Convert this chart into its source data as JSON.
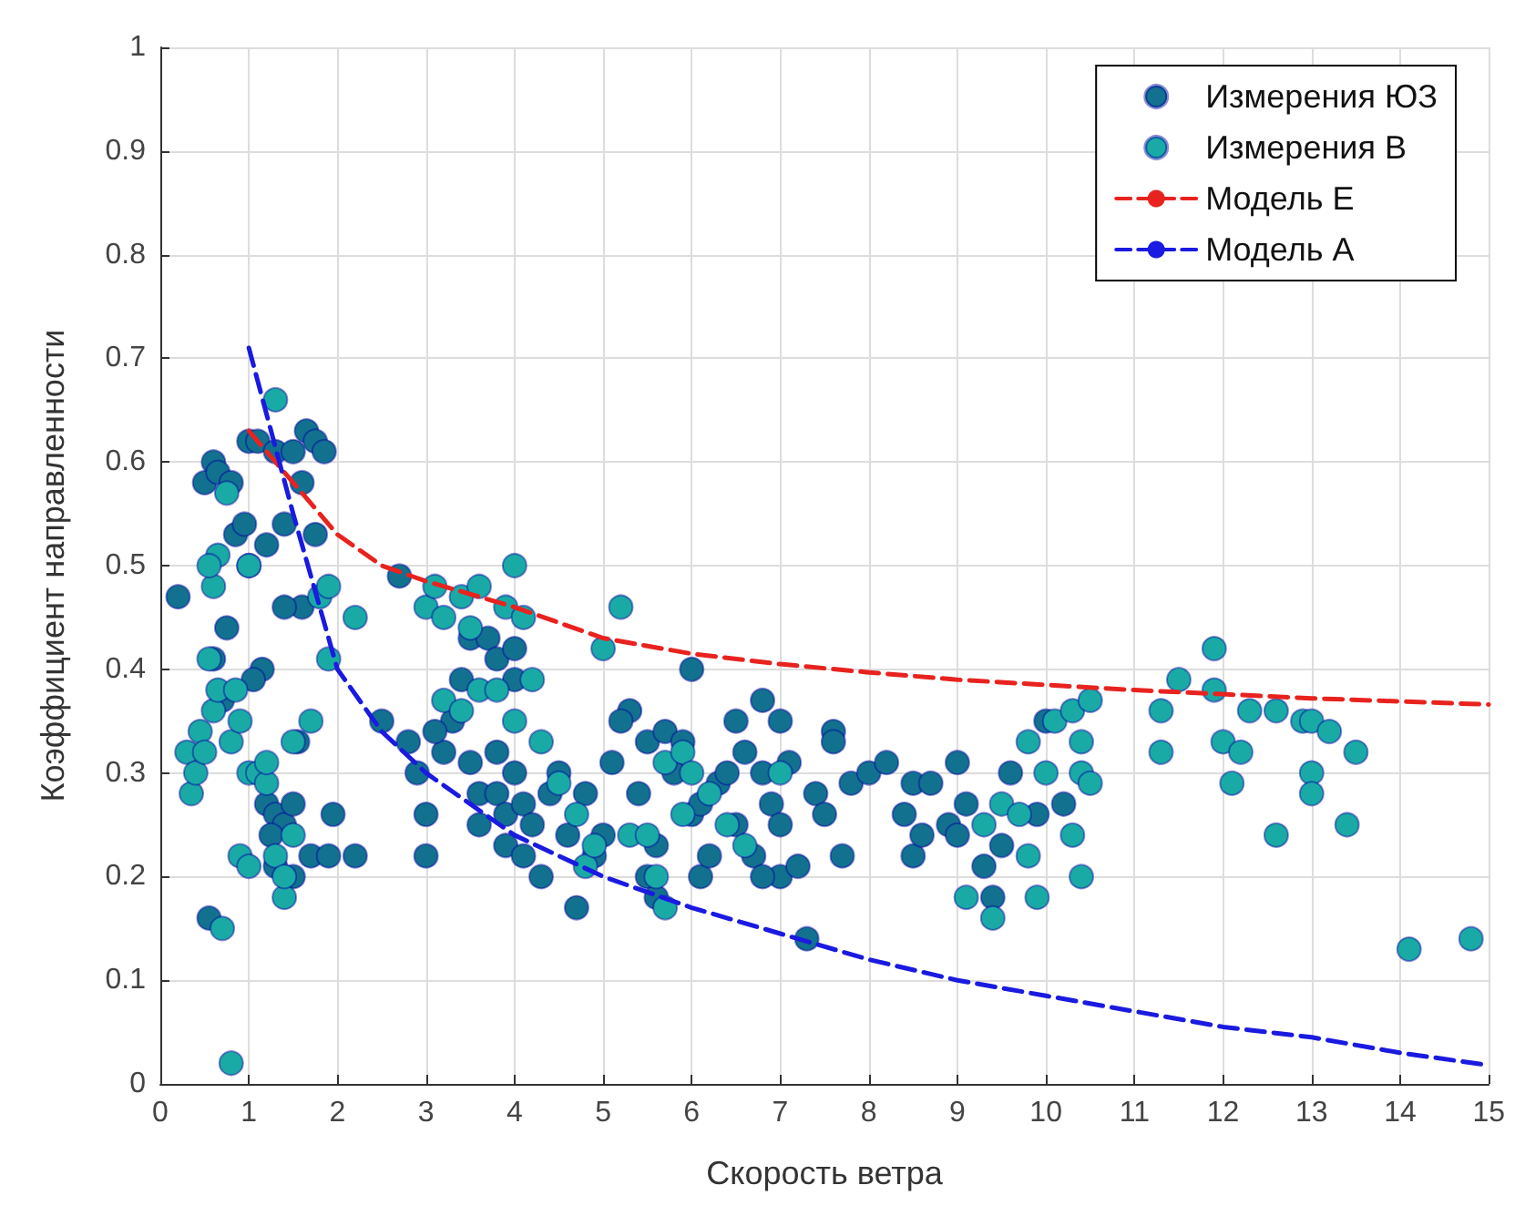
{
  "chart_data": {
    "type": "scatter",
    "xlabel": "Скорость ветра",
    "ylabel": "Коэффициент направленности",
    "xlim": [
      0,
      15
    ],
    "xticks": [
      0,
      1,
      2,
      3,
      4,
      5,
      6,
      7,
      8,
      9,
      10,
      11,
      12,
      13,
      14,
      15
    ],
    "ylim": [
      0,
      1
    ],
    "yticks": [
      0,
      0.1,
      0.2,
      0.3,
      0.4,
      0.5,
      0.6,
      0.7,
      0.8,
      0.9,
      1
    ],
    "grid": true,
    "legend": "top right",
    "series": [
      {
        "name": "Измерения ЮЗ",
        "marker": "circle",
        "color": "#12718f",
        "x": [
          0.2,
          0.55,
          0.5,
          0.6,
          0.65,
          0.8,
          0.85,
          0.75,
          0.6,
          0.7,
          0.95,
          1.0,
          1.1,
          1.3,
          1.5,
          1.65,
          1.75,
          1.85,
          1.6,
          1.4,
          1.2,
          1.15,
          1.05,
          1.6,
          1.4,
          1.75,
          1.0,
          1.2,
          1.3,
          1.4,
          1.5,
          1.25,
          1.7,
          1.3,
          1.5,
          1.9,
          1.95,
          2.2,
          1.55,
          2.5,
          2.8,
          2.9,
          3.0,
          3.0,
          3.2,
          3.3,
          3.5,
          3.6,
          3.6,
          3.8,
          3.8,
          3.9,
          3.9,
          4.0,
          4.1,
          4.1,
          4.2,
          4.3,
          4.4,
          4.5,
          4.6,
          4.7,
          4.8,
          4.9,
          3.5,
          3.7,
          3.8,
          4.0,
          4.0,
          3.4,
          3.1,
          2.7,
          5.1,
          5.3,
          5.2,
          5.4,
          5.5,
          5.5,
          5.6,
          5.6,
          5.7,
          5.8,
          5.9,
          6.0,
          6.0,
          6.1,
          6.1,
          6.2,
          6.3,
          6.4,
          6.5,
          6.5,
          6.6,
          6.7,
          6.8,
          6.8,
          6.9,
          7.0,
          7.0,
          7.0,
          7.1,
          7.2,
          7.3,
          7.4,
          7.5,
          7.6,
          7.6,
          7.7,
          7.8,
          8.0,
          8.2,
          8.4,
          8.5,
          8.5,
          8.6,
          8.7,
          8.9,
          9.0,
          9.0,
          9.1,
          9.3,
          9.4,
          9.5,
          9.6,
          10.0,
          9.9,
          10.2,
          6.8,
          5.0
        ],
        "values": [
          0.47,
          0.16,
          0.58,
          0.6,
          0.59,
          0.58,
          0.53,
          0.44,
          0.41,
          0.37,
          0.54,
          0.62,
          0.62,
          0.61,
          0.61,
          0.63,
          0.62,
          0.61,
          0.58,
          0.54,
          0.52,
          0.4,
          0.39,
          0.46,
          0.46,
          0.53,
          0.5,
          0.27,
          0.26,
          0.25,
          0.27,
          0.24,
          0.22,
          0.21,
          0.2,
          0.22,
          0.26,
          0.22,
          0.33,
          0.35,
          0.33,
          0.3,
          0.26,
          0.22,
          0.32,
          0.35,
          0.31,
          0.28,
          0.25,
          0.32,
          0.28,
          0.26,
          0.23,
          0.3,
          0.27,
          0.22,
          0.25,
          0.2,
          0.28,
          0.3,
          0.24,
          0.17,
          0.28,
          0.22,
          0.43,
          0.43,
          0.41,
          0.42,
          0.39,
          0.39,
          0.34,
          0.49,
          0.31,
          0.36,
          0.35,
          0.28,
          0.33,
          0.2,
          0.23,
          0.18,
          0.34,
          0.3,
          0.33,
          0.26,
          0.4,
          0.27,
          0.2,
          0.22,
          0.29,
          0.3,
          0.35,
          0.25,
          0.32,
          0.22,
          0.37,
          0.3,
          0.27,
          0.35,
          0.25,
          0.2,
          0.31,
          0.21,
          0.14,
          0.28,
          0.26,
          0.34,
          0.33,
          0.22,
          0.29,
          0.3,
          0.31,
          0.26,
          0.29,
          0.22,
          0.24,
          0.29,
          0.25,
          0.31,
          0.24,
          0.27,
          0.21,
          0.18,
          0.23,
          0.3,
          0.35,
          0.26,
          0.27,
          0.2,
          0.24
        ]
      },
      {
        "name": "Измерения В",
        "marker": "circle",
        "color": "#1aaaa6",
        "x": [
          0.3,
          0.35,
          0.4,
          0.45,
          0.5,
          0.55,
          0.6,
          0.65,
          0.6,
          0.7,
          0.75,
          0.65,
          0.8,
          0.85,
          0.9,
          0.9,
          1.0,
          1.0,
          1.0,
          1.1,
          1.2,
          1.2,
          1.3,
          1.4,
          1.4,
          1.3,
          1.5,
          1.7,
          1.8,
          1.9,
          1.9,
          0.8,
          2.2,
          0.55,
          1.5,
          3.0,
          3.1,
          3.2,
          3.4,
          3.5,
          3.6,
          3.9,
          4.0,
          4.1,
          3.2,
          3.4,
          3.6,
          3.8,
          4.2,
          4.3,
          4.0,
          4.5,
          4.7,
          4.8,
          4.9,
          5.0,
          5.2,
          5.3,
          5.5,
          5.6,
          5.7,
          5.7,
          5.9,
          6.0,
          5.9,
          6.2,
          6.4,
          6.6,
          7.0,
          9.1,
          9.4,
          9.3,
          9.5,
          9.7,
          9.8,
          9.8,
          9.9,
          10.0,
          10.1,
          10.3,
          10.4,
          10.5,
          10.4,
          10.3,
          10.4,
          10.5,
          11.3,
          11.3,
          11.5,
          11.9,
          11.9,
          12.0,
          12.1,
          12.2,
          12.3,
          12.6,
          12.6,
          12.9,
          13.0,
          13.0,
          13.0,
          13.2,
          13.4,
          13.5,
          14.1,
          14.8
        ],
        "values": [
          0.32,
          0.28,
          0.3,
          0.34,
          0.32,
          0.41,
          0.36,
          0.51,
          0.48,
          0.15,
          0.57,
          0.38,
          0.33,
          0.38,
          0.35,
          0.22,
          0.3,
          0.5,
          0.21,
          0.3,
          0.29,
          0.31,
          0.22,
          0.18,
          0.2,
          0.66,
          0.33,
          0.35,
          0.47,
          0.48,
          0.41,
          0.02,
          0.45,
          0.5,
          0.24,
          0.46,
          0.48,
          0.45,
          0.47,
          0.44,
          0.48,
          0.46,
          0.5,
          0.45,
          0.37,
          0.36,
          0.38,
          0.38,
          0.39,
          0.33,
          0.35,
          0.29,
          0.26,
          0.21,
          0.23,
          0.42,
          0.46,
          0.24,
          0.24,
          0.2,
          0.17,
          0.31,
          0.32,
          0.3,
          0.26,
          0.28,
          0.25,
          0.23,
          0.3,
          0.18,
          0.16,
          0.25,
          0.27,
          0.26,
          0.22,
          0.33,
          0.18,
          0.3,
          0.35,
          0.36,
          0.33,
          0.37,
          0.3,
          0.24,
          0.2,
          0.29,
          0.36,
          0.32,
          0.39,
          0.42,
          0.38,
          0.33,
          0.29,
          0.32,
          0.36,
          0.36,
          0.24,
          0.35,
          0.35,
          0.3,
          0.28,
          0.34,
          0.25,
          0.32,
          0.13,
          0.14
        ]
      },
      {
        "name": "Модель E",
        "type": "line",
        "marker": "none",
        "line_style": "dashed",
        "color": "#e8231f",
        "x": [
          1,
          1.5,
          2,
          2.5,
          3,
          4,
          5,
          6,
          7,
          8,
          9,
          10,
          11,
          12,
          13,
          14,
          15
        ],
        "values": [
          0.63,
          0.58,
          0.53,
          0.5,
          0.485,
          0.46,
          0.43,
          0.415,
          0.405,
          0.397,
          0.39,
          0.385,
          0.38,
          0.376,
          0.372,
          0.369,
          0.366
        ]
      },
      {
        "name": "Модель A",
        "type": "line",
        "marker": "none",
        "line_style": "dashed",
        "color": "#1a1ae0",
        "x": [
          1,
          1.5,
          2,
          2.5,
          3,
          3.5,
          4,
          5,
          6,
          7,
          8,
          9,
          10,
          11,
          12,
          13,
          14,
          15
        ],
        "values": [
          0.71,
          0.55,
          0.4,
          0.34,
          0.3,
          0.27,
          0.24,
          0.2,
          0.17,
          0.145,
          0.12,
          0.1,
          0.085,
          0.07,
          0.055,
          0.045,
          0.03,
          0.018
        ]
      }
    ]
  }
}
